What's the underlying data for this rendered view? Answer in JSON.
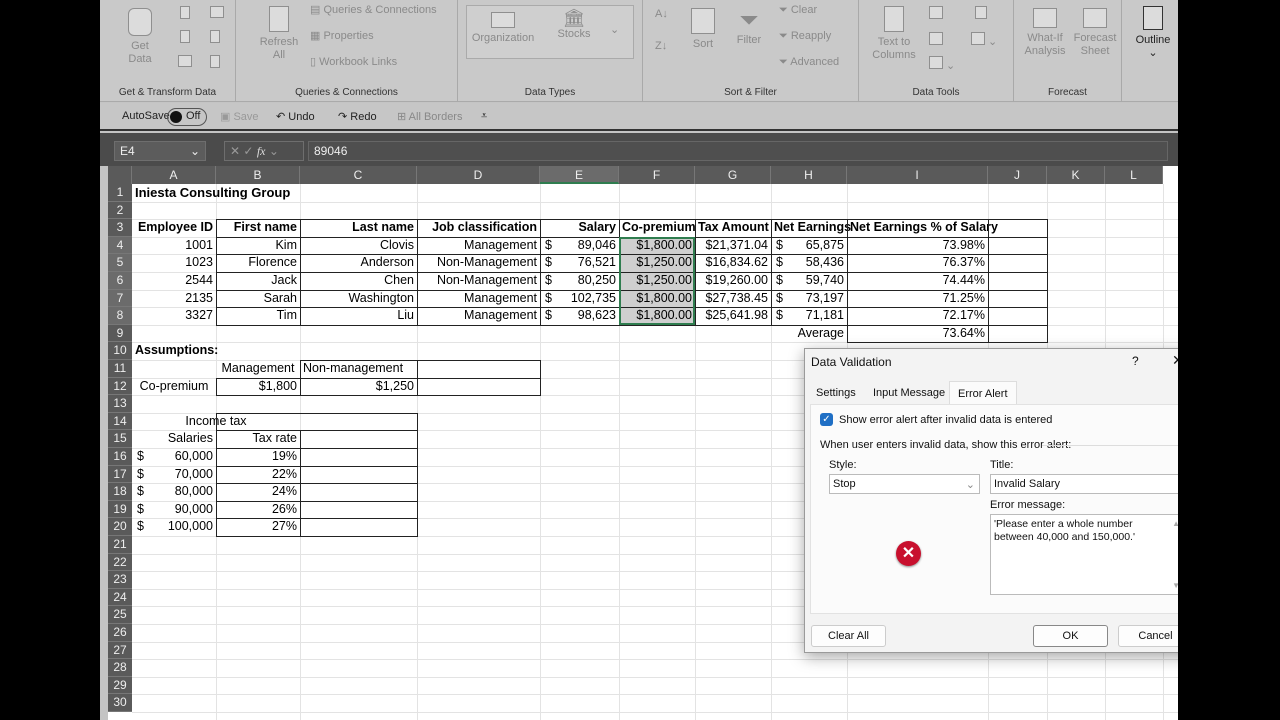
{
  "ribbon": {
    "groups": [
      "Get & Transform Data",
      "Queries & Connections",
      "Data Types",
      "Sort & Filter",
      "Data Tools",
      "Forecast"
    ],
    "get_data": "Get Data",
    "refresh_all": "Refresh All",
    "queries_connections": "Queries & Connections",
    "properties": "Properties",
    "workbook_links": "Workbook Links",
    "organization": "Organization",
    "stocks": "Stocks",
    "sort": "Sort",
    "filter": "Filter",
    "clear": "Clear",
    "reapply": "Reapply",
    "advanced": "Advanced",
    "text_to_columns": "Text to Columns",
    "what_if": "What-If Analysis",
    "forecast_sheet": "Forecast Sheet",
    "outline": "Outline"
  },
  "qat": {
    "autosave": "AutoSave",
    "toggle": "Off",
    "save": "Save",
    "undo": "Undo",
    "redo": "Redo",
    "all_borders": "All Borders"
  },
  "formula_bar": {
    "name_box": "E4",
    "fx": "fx",
    "value": "89046"
  },
  "columns": [
    "A",
    "B",
    "C",
    "D",
    "E",
    "F",
    "G",
    "H",
    "I",
    "J",
    "K",
    "L"
  ],
  "rows": [
    "1",
    "2",
    "3",
    "4",
    "5",
    "6",
    "7",
    "8",
    "9",
    "10",
    "11",
    "12",
    "13",
    "14",
    "15",
    "16",
    "17",
    "18",
    "19",
    "20",
    "21",
    "22",
    "23",
    "24",
    "25",
    "26",
    "27",
    "28",
    "29",
    "30"
  ],
  "cells": [
    {
      "r": 1,
      "c": "A",
      "v": "Iniesta Consulting Group",
      "b": true,
      "al": "l"
    },
    {
      "r": 3,
      "c": "A",
      "v": "Employee ID",
      "b": true,
      "al": "r"
    },
    {
      "r": 3,
      "c": "B",
      "v": "First name",
      "b": true,
      "al": "r"
    },
    {
      "r": 3,
      "c": "C",
      "v": "Last name",
      "b": true,
      "al": "r"
    },
    {
      "r": 3,
      "c": "D",
      "v": "Job classification",
      "b": true,
      "al": "r"
    },
    {
      "r": 3,
      "c": "E",
      "v": "Salary",
      "b": true,
      "al": "r"
    },
    {
      "r": 3,
      "c": "F",
      "v": "Co-premium",
      "b": true,
      "al": "r"
    },
    {
      "r": 3,
      "c": "G",
      "v": "Tax Amount",
      "b": true,
      "al": "r"
    },
    {
      "r": 3,
      "c": "H",
      "v": "Net Earnings",
      "b": true,
      "al": "r"
    },
    {
      "r": 3,
      "c": "I",
      "v": "Net Earnings % of Salary",
      "b": true,
      "al": "r"
    },
    {
      "r": 4,
      "c": "A",
      "v": "1001",
      "al": "r"
    },
    {
      "r": 4,
      "c": "B",
      "v": "Kim",
      "al": "r"
    },
    {
      "r": 4,
      "c": "C",
      "v": "Clovis",
      "al": "r"
    },
    {
      "r": 4,
      "c": "D",
      "v": "Management",
      "al": "r"
    },
    {
      "r": 4,
      "c": "E",
      "cur": "$",
      "v": "89,046",
      "al": "r"
    },
    {
      "r": 4,
      "c": "F",
      "v": "$1,800.00",
      "al": "r"
    },
    {
      "r": 4,
      "c": "G",
      "v": "$21,371.04",
      "al": "r"
    },
    {
      "r": 4,
      "c": "H",
      "cur": "$",
      "v": "65,875",
      "al": "r"
    },
    {
      "r": 4,
      "c": "I",
      "v": "73.98%",
      "al": "r"
    },
    {
      "r": 5,
      "c": "A",
      "v": "1023",
      "al": "r"
    },
    {
      "r": 5,
      "c": "B",
      "v": "Florence",
      "al": "r"
    },
    {
      "r": 5,
      "c": "C",
      "v": "Anderson",
      "al": "r"
    },
    {
      "r": 5,
      "c": "D",
      "v": "Non-Management",
      "al": "r"
    },
    {
      "r": 5,
      "c": "E",
      "cur": "$",
      "v": "76,521",
      "al": "r"
    },
    {
      "r": 5,
      "c": "F",
      "v": "$1,250.00",
      "al": "r"
    },
    {
      "r": 5,
      "c": "G",
      "v": "$16,834.62",
      "al": "r"
    },
    {
      "r": 5,
      "c": "H",
      "cur": "$",
      "v": "58,436",
      "al": "r"
    },
    {
      "r": 5,
      "c": "I",
      "v": "76.37%",
      "al": "r"
    },
    {
      "r": 6,
      "c": "A",
      "v": "2544",
      "al": "r"
    },
    {
      "r": 6,
      "c": "B",
      "v": "Jack",
      "al": "r"
    },
    {
      "r": 6,
      "c": "C",
      "v": "Chen",
      "al": "r"
    },
    {
      "r": 6,
      "c": "D",
      "v": "Non-Management",
      "al": "r"
    },
    {
      "r": 6,
      "c": "E",
      "cur": "$",
      "v": "80,250",
      "al": "r"
    },
    {
      "r": 6,
      "c": "F",
      "v": "$1,250.00",
      "al": "r"
    },
    {
      "r": 6,
      "c": "G",
      "v": "$19,260.00",
      "al": "r"
    },
    {
      "r": 6,
      "c": "H",
      "cur": "$",
      "v": "59,740",
      "al": "r"
    },
    {
      "r": 6,
      "c": "I",
      "v": "74.44%",
      "al": "r"
    },
    {
      "r": 7,
      "c": "A",
      "v": "2135",
      "al": "r"
    },
    {
      "r": 7,
      "c": "B",
      "v": "Sarah",
      "al": "r"
    },
    {
      "r": 7,
      "c": "C",
      "v": "Washington",
      "al": "r"
    },
    {
      "r": 7,
      "c": "D",
      "v": "Management",
      "al": "r"
    },
    {
      "r": 7,
      "c": "E",
      "cur": "$",
      "v": "102,735",
      "al": "r"
    },
    {
      "r": 7,
      "c": "F",
      "v": "$1,800.00",
      "al": "r"
    },
    {
      "r": 7,
      "c": "G",
      "v": "$27,738.45",
      "al": "r"
    },
    {
      "r": 7,
      "c": "H",
      "cur": "$",
      "v": "73,197",
      "al": "r"
    },
    {
      "r": 7,
      "c": "I",
      "v": "71.25%",
      "al": "r"
    },
    {
      "r": 8,
      "c": "A",
      "v": "3327",
      "al": "r"
    },
    {
      "r": 8,
      "c": "B",
      "v": "Tim",
      "al": "r"
    },
    {
      "r": 8,
      "c": "C",
      "v": "Liu",
      "al": "r"
    },
    {
      "r": 8,
      "c": "D",
      "v": "Management",
      "al": "r"
    },
    {
      "r": 8,
      "c": "E",
      "cur": "$",
      "v": "98,623",
      "al": "r"
    },
    {
      "r": 8,
      "c": "F",
      "v": "$1,800.00",
      "al": "r"
    },
    {
      "r": 8,
      "c": "G",
      "v": "$25,641.98",
      "al": "r"
    },
    {
      "r": 8,
      "c": "H",
      "cur": "$",
      "v": "71,181",
      "al": "r"
    },
    {
      "r": 8,
      "c": "I",
      "v": "72.17%",
      "al": "r"
    },
    {
      "r": 9,
      "c": "H",
      "v": "Average",
      "al": "r"
    },
    {
      "r": 9,
      "c": "I",
      "v": "73.64%",
      "al": "r"
    },
    {
      "r": 10,
      "c": "A",
      "v": "Assumptions:",
      "b": true,
      "al": "l"
    },
    {
      "r": 11,
      "c": "B",
      "v": "Management",
      "al": "c"
    },
    {
      "r": 11,
      "c": "C",
      "v": "Non-management",
      "al": "l"
    },
    {
      "r": 12,
      "c": "A",
      "v": "Co-premium",
      "al": "c"
    },
    {
      "r": 12,
      "c": "B",
      "v": "$1,800",
      "al": "r"
    },
    {
      "r": 12,
      "c": "C",
      "v": "$1,250",
      "al": "r"
    },
    {
      "r": 14,
      "c": "A",
      "v": "Income tax",
      "al": "span"
    },
    {
      "r": 15,
      "c": "A",
      "v": "Salaries",
      "al": "r"
    },
    {
      "r": 15,
      "c": "B",
      "v": "Tax rate",
      "al": "r"
    },
    {
      "r": 16,
      "c": "A",
      "cur": "$",
      "v": "60,000",
      "al": "r"
    },
    {
      "r": 16,
      "c": "B",
      "v": "19%",
      "al": "r"
    },
    {
      "r": 17,
      "c": "A",
      "cur": "$",
      "v": "70,000",
      "al": "r"
    },
    {
      "r": 17,
      "c": "B",
      "v": "22%",
      "al": "r"
    },
    {
      "r": 18,
      "c": "A",
      "cur": "$",
      "v": "80,000",
      "al": "r"
    },
    {
      "r": 18,
      "c": "B",
      "v": "24%",
      "al": "r"
    },
    {
      "r": 19,
      "c": "A",
      "cur": "$",
      "v": "90,000",
      "al": "r"
    },
    {
      "r": 19,
      "c": "B",
      "v": "26%",
      "al": "r"
    },
    {
      "r": 20,
      "c": "A",
      "cur": "$",
      "v": "100,000",
      "al": "r"
    },
    {
      "r": 20,
      "c": "B",
      "v": "27%",
      "al": "r"
    }
  ],
  "dialog": {
    "title": "Data Validation",
    "help": "?",
    "close": "✕",
    "tabs": [
      {
        "label": "Settings",
        "active": false
      },
      {
        "label": "Input Message",
        "active": false
      },
      {
        "label": "Error Alert",
        "active": true
      }
    ],
    "show_alert_label": "Show error alert after invalid data is entered",
    "show_alert_checked": true,
    "section_label": "When user enters invalid data, show this error alert:",
    "style_label": "Style:",
    "style_value": "Stop",
    "title_label": "Title:",
    "title_value": "Invalid Salary",
    "message_label": "Error message:",
    "message_value": "'Please enter a whole number between 40,000 and 150,000.'",
    "clear_all": "Clear All",
    "ok": "OK",
    "cancel": "Cancel",
    "accent": "#1f6fc5",
    "stop_color": "#c8102e"
  }
}
